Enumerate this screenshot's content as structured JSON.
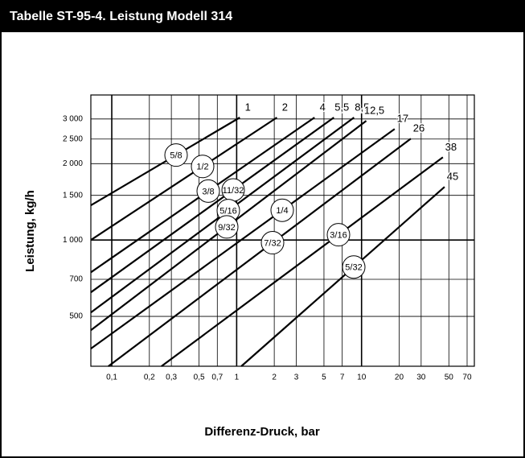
{
  "chart_data": {
    "type": "line",
    "title": "Tabelle ST-95-4. Leistung Modell 314",
    "xlabel": "Differenz-Druck, bar",
    "ylabel": "Leistung, kg/h",
    "xscale": "log",
    "yscale": "log",
    "grid": true,
    "color": "#000000",
    "xlim": [
      0.068,
      80
    ],
    "ylim": [
      318,
      3730
    ],
    "xticks": [
      {
        "value": 0.1,
        "label": "0,1"
      },
      {
        "value": 0.2,
        "label": "0,2"
      },
      {
        "value": 0.3,
        "label": "0,3"
      },
      {
        "value": 0.5,
        "label": "0,5"
      },
      {
        "value": 0.7,
        "label": "0,7"
      },
      1,
      2,
      3,
      5,
      7,
      10,
      20,
      30,
      50,
      70
    ],
    "yticks": [
      500,
      700,
      {
        "value": 1000,
        "label": "1 000"
      },
      {
        "value": 1500,
        "label": "1 500"
      },
      {
        "value": 2000,
        "label": "2 000"
      },
      {
        "value": 2500,
        "label": "2 500"
      },
      {
        "value": 3000,
        "label": "3 000"
      }
    ],
    "series": [
      {
        "name": "1",
        "size": "5/8",
        "x": [
          0.068,
          1.06
        ],
        "values": [
          1370,
          3040
        ]
      },
      {
        "name": "2",
        "size": "1/2",
        "x": [
          0.068,
          2.1
        ],
        "values": [
          1000,
          3040
        ]
      },
      {
        "name": "4",
        "size": "3/8",
        "x": [
          0.068,
          4.2
        ],
        "values": [
          746,
          3040
        ]
      },
      {
        "name": "5,5",
        "size": "11/32",
        "x": [
          0.068,
          6.0
        ],
        "values": [
          622,
          3040
        ]
      },
      {
        "name": "8,5",
        "size": "5/16",
        "x": [
          0.068,
          8.7
        ],
        "values": [
          518,
          3040
        ]
      },
      {
        "name": "12,5",
        "size": "9/32",
        "x": [
          0.068,
          10.9
        ],
        "values": [
          441,
          2950
        ]
      },
      {
        "name": "17",
        "size": "1/4",
        "x": [
          0.068,
          18.4
        ],
        "values": [
          373,
          2740
        ]
      },
      {
        "name": "26",
        "size": "7/32",
        "x": [
          0.094,
          24.8
        ],
        "values": [
          318,
          2510
        ]
      },
      {
        "name": "38",
        "size": "3/16",
        "x": [
          0.25,
          44.8
        ],
        "values": [
          318,
          2120
        ]
      },
      {
        "name": "45",
        "size": "5/32",
        "x": [
          1.09,
          46.2
        ],
        "values": [
          318,
          1620
        ]
      }
    ]
  }
}
